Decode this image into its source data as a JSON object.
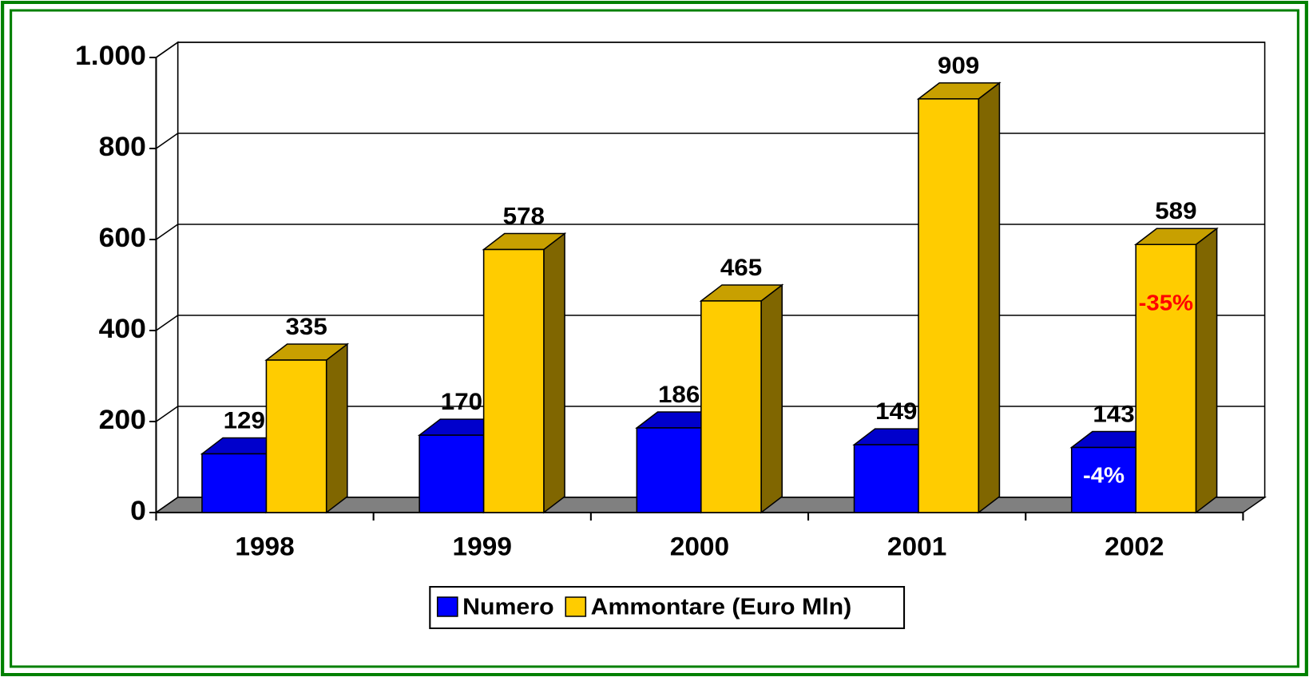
{
  "chart_data": {
    "type": "bar3d",
    "categories": [
      "1998",
      "1999",
      "2000",
      "2001",
      "2002"
    ],
    "series": [
      {
        "name": "Numero",
        "color": "#0000ff",
        "values": [
          129,
          170,
          186,
          149,
          143
        ]
      },
      {
        "name": "Ammontare (Euro Mln)",
        "color": "#ffcc00",
        "values": [
          335,
          578,
          465,
          909,
          589
        ]
      }
    ],
    "ylim": [
      0,
      1000
    ],
    "yticks": [
      0,
      200,
      400,
      600,
      800,
      {
        "value": 1000,
        "label": "1.000"
      }
    ],
    "grid": true,
    "legend": "bottom",
    "annotations": [
      "-4%",
      "-35%"
    ]
  }
}
